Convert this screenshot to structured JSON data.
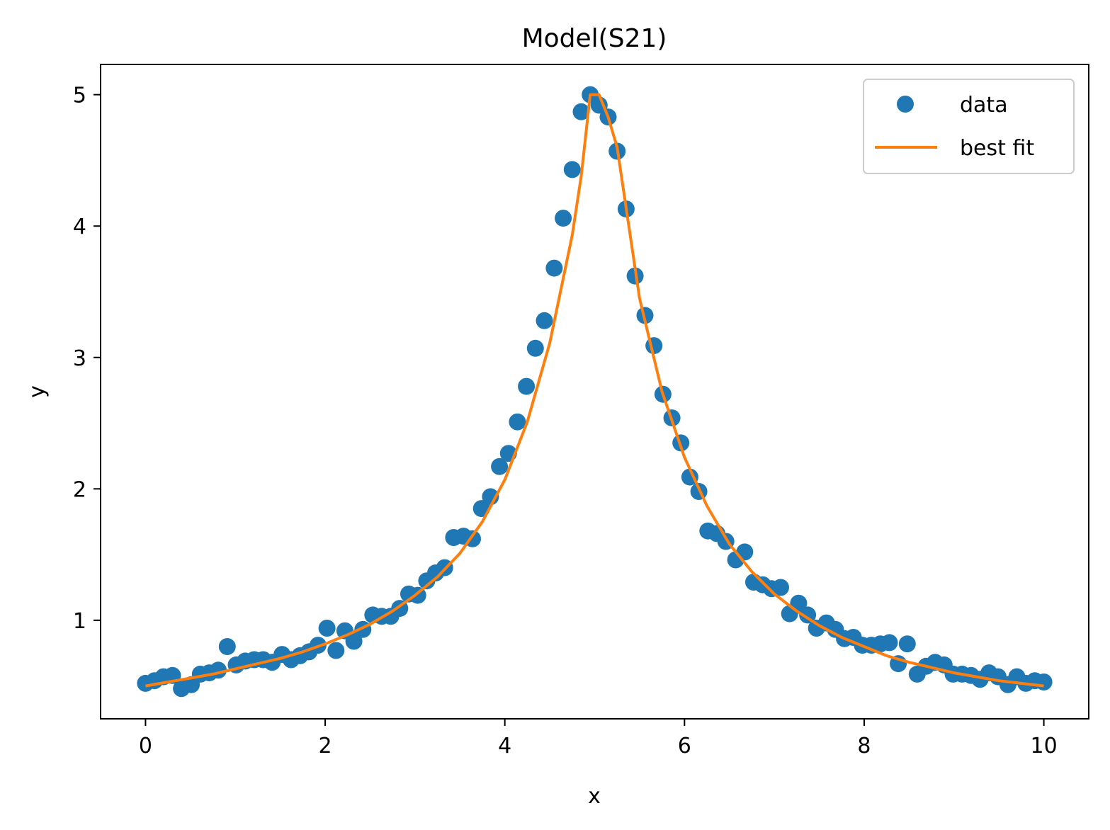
{
  "chart_data": {
    "type": "scatter",
    "title": "Model(S21)",
    "xlabel": "x",
    "ylabel": "y",
    "xlim": [
      -0.5,
      10.5
    ],
    "ylim": [
      0.25,
      5.23
    ],
    "xticks": [
      0,
      2,
      4,
      6,
      8,
      10
    ],
    "yticks": [
      1,
      2,
      3,
      4,
      5
    ],
    "grid": false,
    "legend_position": "top-right",
    "colors": {
      "data": "#1f77b4",
      "fit": "#ff7f0e"
    },
    "series": [
      {
        "name": "data",
        "kind": "markers",
        "x": [
          0.0,
          0.1,
          0.2,
          0.3,
          0.4,
          0.51,
          0.61,
          0.71,
          0.81,
          0.91,
          1.01,
          1.11,
          1.21,
          1.31,
          1.41,
          1.52,
          1.62,
          1.72,
          1.82,
          1.92,
          2.02,
          2.12,
          2.22,
          2.32,
          2.42,
          2.53,
          2.63,
          2.73,
          2.83,
          2.93,
          3.03,
          3.13,
          3.23,
          3.33,
          3.43,
          3.54,
          3.64,
          3.74,
          3.84,
          3.94,
          4.04,
          4.14,
          4.24,
          4.34,
          4.44,
          4.55,
          4.65,
          4.75,
          4.85,
          4.95,
          5.05,
          5.15,
          5.25,
          5.35,
          5.45,
          5.56,
          5.66,
          5.76,
          5.86,
          5.96,
          6.06,
          6.16,
          6.26,
          6.36,
          6.46,
          6.57,
          6.67,
          6.77,
          6.87,
          6.97,
          7.07,
          7.17,
          7.27,
          7.37,
          7.47,
          7.58,
          7.68,
          7.78,
          7.88,
          7.98,
          8.08,
          8.18,
          8.28,
          8.38,
          8.48,
          8.59,
          8.69,
          8.79,
          8.89,
          8.99,
          9.09,
          9.19,
          9.29,
          9.39,
          9.49,
          9.6,
          9.7,
          9.8,
          9.9,
          10.0
        ],
        "y": [
          0.52,
          0.54,
          0.57,
          0.58,
          0.48,
          0.51,
          0.59,
          0.6,
          0.62,
          0.8,
          0.66,
          0.69,
          0.7,
          0.7,
          0.68,
          0.74,
          0.7,
          0.73,
          0.76,
          0.81,
          0.94,
          0.77,
          0.92,
          0.84,
          0.93,
          1.04,
          1.03,
          1.03,
          1.09,
          1.2,
          1.19,
          1.3,
          1.36,
          1.4,
          1.63,
          1.64,
          1.62,
          1.85,
          1.94,
          2.17,
          2.27,
          2.51,
          2.78,
          3.07,
          3.28,
          3.68,
          4.06,
          4.43,
          4.87,
          5.0,
          4.92,
          4.83,
          4.57,
          4.13,
          3.62,
          3.32,
          3.09,
          2.72,
          2.54,
          2.35,
          2.09,
          1.98,
          1.68,
          1.66,
          1.6,
          1.46,
          1.52,
          1.29,
          1.27,
          1.24,
          1.25,
          1.05,
          1.13,
          1.04,
          0.94,
          0.98,
          0.93,
          0.86,
          0.87,
          0.81,
          0.81,
          0.82,
          0.83,
          0.67,
          0.82,
          0.59,
          0.65,
          0.68,
          0.66,
          0.59,
          0.59,
          0.58,
          0.55,
          0.6,
          0.57,
          0.51,
          0.57,
          0.52,
          0.54,
          0.53
        ]
      },
      {
        "name": "best fit",
        "kind": "line",
        "x": [
          0.0,
          0.25,
          0.5,
          0.75,
          1.0,
          1.25,
          1.5,
          1.75,
          2.0,
          2.25,
          2.5,
          2.75,
          3.0,
          3.25,
          3.5,
          3.75,
          4.0,
          4.25,
          4.5,
          4.75,
          4.85,
          4.95,
          5.05,
          5.15,
          5.25,
          5.5,
          5.75,
          6.0,
          6.25,
          6.5,
          6.75,
          7.0,
          7.25,
          7.5,
          7.75,
          8.0,
          8.25,
          8.5,
          8.75,
          9.0,
          9.25,
          9.5,
          9.75,
          10.0
        ],
        "y": [
          0.5,
          0.53,
          0.56,
          0.59,
          0.63,
          0.67,
          0.71,
          0.76,
          0.82,
          0.89,
          0.97,
          1.07,
          1.19,
          1.33,
          1.51,
          1.75,
          2.07,
          2.51,
          3.11,
          3.93,
          4.38,
          5.0,
          5.0,
          4.83,
          4.6,
          3.45,
          2.74,
          2.24,
          1.87,
          1.58,
          1.37,
          1.2,
          1.07,
          0.96,
          0.87,
          0.8,
          0.73,
          0.68,
          0.64,
          0.6,
          0.57,
          0.54,
          0.52,
          0.5
        ]
      }
    ]
  }
}
